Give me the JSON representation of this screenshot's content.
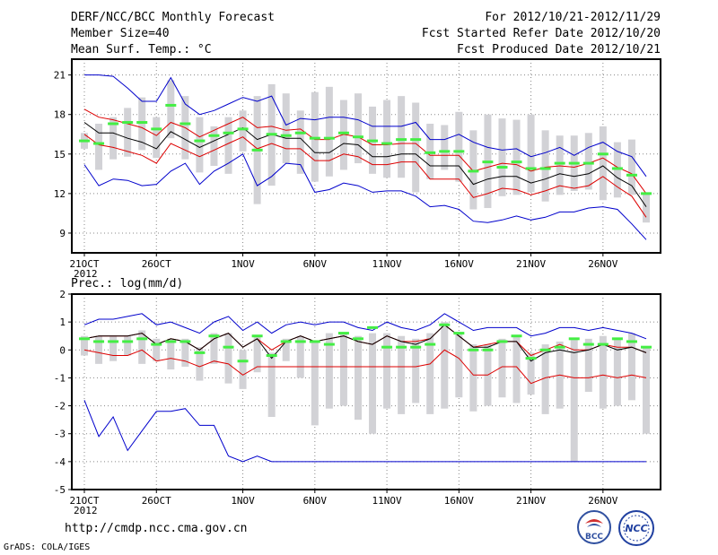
{
  "header": {
    "title": "DERF/NCC/BCC Monthly Forecast",
    "member_size": "Member Size=40",
    "variable_top": "Mean Surf. Temp.: °C",
    "period": "For 2012/10/21-2012/11/29",
    "started": "Fcst Started Refer Date 2012/10/20",
    "produced": "Fcst Produced Date 2012/10/21"
  },
  "footer": {
    "url": "http://cmdp.ncc.cma.gov.cn",
    "grads": "GrADS: COLA/IGES",
    "logo_bcc_text": "BCC",
    "logo_ncc_text": "NCC"
  },
  "colors": {
    "max_line": "#0000cc",
    "p_line": "#dd0000",
    "mean_line": "#000000",
    "bar": "#d2d2d6",
    "obs": "#44ee44",
    "grid": "#888888"
  },
  "chart_data": [
    {
      "type": "line",
      "title": "Mean Surf. Temp.: °C",
      "ylim": [
        7.5,
        22.2
      ],
      "yticks": [
        9,
        12,
        15,
        18,
        21
      ],
      "xticks": [
        {
          "i": 0,
          "label": "21OCT"
        },
        {
          "i": 5,
          "label": "26OCT"
        },
        {
          "i": 11,
          "label": "1NOV"
        },
        {
          "i": 16,
          "label": "6NOV"
        },
        {
          "i": 21,
          "label": "11NOV"
        },
        {
          "i": 26,
          "label": "16NOV"
        },
        {
          "i": 31,
          "label": "21NOV"
        },
        {
          "i": 36,
          "label": "26NOV"
        }
      ],
      "year_label": "2012",
      "series": [
        {
          "name": "max",
          "values": [
            21.0,
            21.0,
            20.9,
            20.0,
            19.0,
            19.0,
            20.8,
            18.8,
            18.0,
            18.3,
            18.8,
            19.3,
            19.0,
            19.4,
            17.2,
            17.7,
            17.6,
            17.8,
            17.8,
            17.6,
            17.1,
            17.1,
            17.1,
            17.4,
            16.1,
            16.1,
            16.5,
            15.9,
            15.5,
            15.3,
            15.4,
            14.8,
            15.1,
            15.5,
            14.9,
            15.5,
            15.9,
            15.2,
            14.8,
            13.3
          ]
        },
        {
          "name": "upper",
          "values": [
            18.4,
            17.8,
            17.6,
            17.3,
            17.0,
            16.4,
            17.4,
            17.0,
            16.3,
            16.8,
            17.3,
            17.8,
            17.0,
            17.1,
            16.8,
            16.9,
            16.1,
            16.1,
            16.5,
            16.3,
            15.7,
            15.7,
            15.8,
            15.8,
            14.9,
            14.9,
            14.9,
            13.7,
            14.0,
            14.3,
            14.2,
            13.7,
            14.0,
            14.1,
            14.0,
            14.3,
            14.7,
            14.0,
            13.5,
            12.0
          ]
        },
        {
          "name": "mean",
          "values": [
            17.4,
            16.6,
            16.6,
            16.2,
            15.9,
            15.4,
            16.7,
            16.1,
            15.5,
            16.0,
            16.5,
            17.0,
            16.1,
            16.5,
            16.2,
            16.2,
            15.1,
            15.1,
            15.8,
            15.7,
            14.8,
            14.8,
            15.0,
            15.0,
            14.1,
            14.1,
            14.1,
            12.7,
            13.1,
            13.3,
            13.3,
            12.8,
            13.1,
            13.5,
            13.3,
            13.5,
            14.1,
            13.2,
            12.6,
            11.0
          ]
        },
        {
          "name": "lower",
          "values": [
            16.5,
            15.7,
            15.5,
            15.2,
            14.9,
            14.3,
            15.8,
            15.3,
            14.8,
            15.3,
            15.8,
            16.3,
            15.4,
            15.8,
            15.4,
            15.4,
            14.5,
            14.5,
            15.0,
            14.8,
            14.2,
            14.2,
            14.4,
            14.4,
            13.1,
            13.1,
            13.1,
            11.7,
            12.0,
            12.4,
            12.3,
            11.9,
            12.2,
            12.6,
            12.4,
            12.6,
            13.3,
            12.5,
            11.8,
            10.2
          ]
        },
        {
          "name": "min",
          "values": [
            14.2,
            12.6,
            13.1,
            13.0,
            12.6,
            12.7,
            13.7,
            14.3,
            12.7,
            13.7,
            14.3,
            15.0,
            12.6,
            13.3,
            14.3,
            14.2,
            12.1,
            12.3,
            12.8,
            12.6,
            12.1,
            12.2,
            12.2,
            11.8,
            11.0,
            11.1,
            10.8,
            9.9,
            9.8,
            10.0,
            10.3,
            10.0,
            10.2,
            10.6,
            10.6,
            10.9,
            11.0,
            10.8,
            9.7,
            8.5
          ]
        }
      ],
      "bars": [
        [
          15.4,
          16.6
        ],
        [
          13.8,
          17.3
        ],
        [
          14.6,
          17.8
        ],
        [
          14.8,
          18.5
        ],
        [
          15.3,
          19.3
        ],
        [
          14.7,
          17.8
        ],
        [
          16.2,
          20.6
        ],
        [
          14.6,
          19.4
        ],
        [
          13.6,
          17.8
        ],
        [
          14.1,
          17.1
        ],
        [
          13.5,
          17.8
        ],
        [
          15.2,
          18.3
        ],
        [
          11.2,
          19.4
        ],
        [
          12.6,
          20.3
        ],
        [
          14.3,
          19.6
        ],
        [
          13.5,
          18.3
        ],
        [
          12.9,
          19.7
        ],
        [
          13.3,
          20.1
        ],
        [
          13.8,
          19.1
        ],
        [
          14.3,
          19.6
        ],
        [
          13.5,
          18.6
        ],
        [
          13.2,
          19.1
        ],
        [
          13.2,
          19.4
        ],
        [
          12.1,
          18.9
        ],
        [
          13.1,
          17.3
        ],
        [
          13.8,
          17.2
        ],
        [
          12.9,
          18.2
        ],
        [
          10.8,
          16.8
        ],
        [
          10.9,
          18.0
        ],
        [
          11.8,
          17.7
        ],
        [
          11.9,
          17.6
        ],
        [
          12.1,
          18.0
        ],
        [
          11.4,
          16.8
        ],
        [
          11.9,
          16.4
        ],
        [
          12.2,
          16.4
        ],
        [
          12.3,
          16.6
        ],
        [
          11.5,
          17.1
        ],
        [
          11.7,
          15.9
        ],
        [
          11.9,
          16.1
        ],
        [
          9.8,
          12.1
        ]
      ],
      "obs": [
        16.0,
        15.8,
        17.3,
        17.4,
        17.4,
        16.9,
        18.7,
        17.3,
        16.0,
        16.4,
        16.6,
        16.9,
        15.3,
        16.5,
        16.4,
        16.6,
        16.2,
        16.2,
        16.6,
        16.3,
        16.0,
        15.8,
        16.1,
        16.1,
        15.1,
        15.2,
        15.2,
        13.7,
        14.4,
        14.0,
        14.4,
        13.9,
        13.9,
        14.3,
        14.3,
        14.3,
        15.0,
        13.9,
        13.4,
        12.0
      ]
    },
    {
      "type": "line",
      "title": "Prec.: log(mm/d)",
      "ylim": [
        -5,
        2
      ],
      "yticks": [
        -5,
        -4,
        -3,
        -2,
        -1,
        0,
        1,
        2
      ],
      "xticks": [
        {
          "i": 0,
          "label": "21OCT"
        },
        {
          "i": 5,
          "label": "26OCT"
        },
        {
          "i": 11,
          "label": "1NOV"
        },
        {
          "i": 16,
          "label": "6NOV"
        },
        {
          "i": 21,
          "label": "11NOV"
        },
        {
          "i": 26,
          "label": "16NOV"
        },
        {
          "i": 31,
          "label": "21NOV"
        },
        {
          "i": 36,
          "label": "26NOV"
        }
      ],
      "year_label": "2012",
      "series": [
        {
          "name": "max",
          "values": [
            0.9,
            1.1,
            1.1,
            1.2,
            1.3,
            0.9,
            1.0,
            0.8,
            0.6,
            1.0,
            1.2,
            0.7,
            1.0,
            0.6,
            0.9,
            1.0,
            0.9,
            1.0,
            1.0,
            0.8,
            0.7,
            1.0,
            0.8,
            0.7,
            0.9,
            1.3,
            1.0,
            0.7,
            0.8,
            0.8,
            0.8,
            0.5,
            0.6,
            0.8,
            0.8,
            0.7,
            0.8,
            0.7,
            0.6,
            0.4
          ]
        },
        {
          "name": "upper",
          "values": [
            0.4,
            0.5,
            0.5,
            0.5,
            0.6,
            0.2,
            0.4,
            0.3,
            0.0,
            0.4,
            0.6,
            0.1,
            0.4,
            0.0,
            0.3,
            0.5,
            0.3,
            0.4,
            0.5,
            0.3,
            0.2,
            0.5,
            0.3,
            0.3,
            0.4,
            0.9,
            0.5,
            0.1,
            0.2,
            0.3,
            0.3,
            -0.2,
            0.0,
            0.2,
            0.0,
            0.0,
            0.2,
            0.1,
            0.1,
            -0.1
          ]
        },
        {
          "name": "mean",
          "values": [
            0.4,
            0.5,
            0.5,
            0.5,
            0.6,
            0.2,
            0.4,
            0.3,
            0.0,
            0.4,
            0.6,
            0.1,
            0.4,
            -0.3,
            0.3,
            0.5,
            0.3,
            0.4,
            0.5,
            0.3,
            0.2,
            0.5,
            0.3,
            0.2,
            0.4,
            0.9,
            0.5,
            0.1,
            0.1,
            0.3,
            0.3,
            -0.4,
            -0.1,
            0.0,
            -0.1,
            0.0,
            0.2,
            0.0,
            0.1,
            -0.1
          ]
        },
        {
          "name": "lower",
          "values": [
            0.0,
            -0.1,
            -0.2,
            -0.2,
            0.0,
            -0.4,
            -0.3,
            -0.4,
            -0.6,
            -0.4,
            -0.5,
            -0.9,
            -0.6,
            -0.6,
            -0.6,
            -0.6,
            -0.6,
            -0.6,
            -0.6,
            -0.6,
            -0.6,
            -0.6,
            -0.6,
            -0.6,
            -0.5,
            0.0,
            -0.3,
            -0.9,
            -0.9,
            -0.6,
            -0.6,
            -1.2,
            -1.0,
            -0.9,
            -1.0,
            -1.0,
            -0.9,
            -1.0,
            -0.9,
            -1.0
          ]
        },
        {
          "name": "min",
          "values": [
            -1.8,
            -3.1,
            -2.4,
            -3.6,
            -2.9,
            -2.2,
            -2.2,
            -2.1,
            -2.7,
            -2.7,
            -3.8,
            -4.0,
            -3.8,
            -4.0,
            -4.0,
            -4.0,
            -4.0,
            -4.0,
            -4.0,
            -4.0,
            -4.0,
            -4.0,
            -4.0,
            -4.0,
            -4.0,
            -4.0,
            -4.0,
            -4.0,
            -4.0,
            -4.0,
            -4.0,
            -4.0,
            -4.0,
            -4.0,
            -4.0,
            -4.0,
            -4.0,
            -4.0,
            -4.0,
            -4.0
          ]
        }
      ],
      "bars": [
        [
          -0.2,
          0.5
        ],
        [
          -0.5,
          0.5
        ],
        [
          -0.4,
          0.5
        ],
        [
          -0.2,
          0.5
        ],
        [
          -0.5,
          0.7
        ],
        [
          -0.4,
          0.4
        ],
        [
          -0.7,
          0.4
        ],
        [
          -0.6,
          0.4
        ],
        [
          -1.1,
          0.1
        ],
        [
          -0.5,
          0.6
        ],
        [
          -1.2,
          0.6
        ],
        [
          -1.4,
          0.0
        ],
        [
          -0.8,
          0.5
        ],
        [
          -2.4,
          -0.1
        ],
        [
          -0.4,
          0.4
        ],
        [
          -1.0,
          0.5
        ],
        [
          -2.7,
          0.3
        ],
        [
          -2.1,
          0.6
        ],
        [
          -2.0,
          0.6
        ],
        [
          -2.5,
          0.5
        ],
        [
          -3.0,
          0.6
        ],
        [
          -2.1,
          0.6
        ],
        [
          -2.3,
          0.5
        ],
        [
          -1.9,
          0.4
        ],
        [
          -2.3,
          0.6
        ],
        [
          -2.1,
          1.0
        ],
        [
          -1.7,
          0.6
        ],
        [
          -2.2,
          0.2
        ],
        [
          -2.0,
          0.2
        ],
        [
          -1.7,
          0.4
        ],
        [
          -1.9,
          0.5
        ],
        [
          -1.6,
          -0.1
        ],
        [
          -2.3,
          0.2
        ],
        [
          -2.1,
          0.3
        ],
        [
          -4.0,
          0.4
        ],
        [
          -1.5,
          0.4
        ],
        [
          -2.1,
          0.5
        ],
        [
          -2.0,
          0.4
        ],
        [
          -1.8,
          0.6
        ],
        [
          -3.0,
          0.1
        ]
      ],
      "obs": [
        0.4,
        0.3,
        0.3,
        0.3,
        0.4,
        0.2,
        0.3,
        0.3,
        -0.1,
        0.5,
        0.1,
        -0.4,
        0.5,
        -0.2,
        0.3,
        0.3,
        0.3,
        0.2,
        0.6,
        0.4,
        0.8,
        0.1,
        0.1,
        0.1,
        0.2,
        0.9,
        0.6,
        0.0,
        0.0,
        0.3,
        0.5,
        -0.3,
        0.0,
        0.1,
        0.4,
        0.2,
        0.2,
        0.4,
        0.3,
        0.1
      ]
    }
  ]
}
